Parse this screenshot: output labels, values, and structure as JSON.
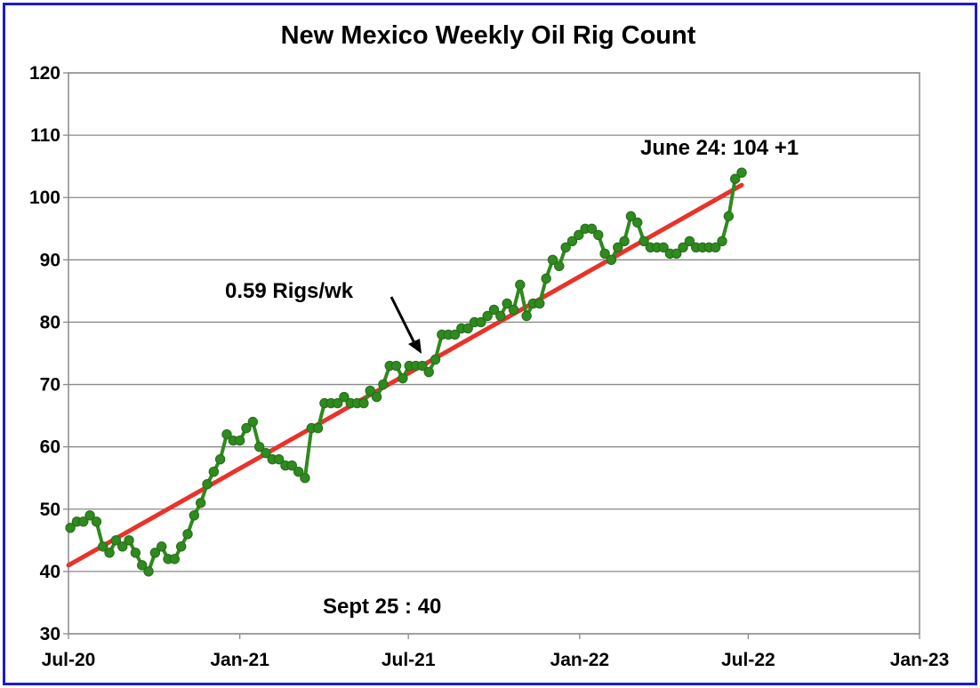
{
  "chart_data": {
    "type": "line",
    "title": "New Mexico Weekly Oil Rig Count",
    "xlabel": "",
    "ylabel": "",
    "ylim": [
      30,
      120
    ],
    "yticks": [
      30,
      40,
      50,
      60,
      70,
      80,
      90,
      100,
      110,
      120
    ],
    "xlim": [
      "2020-07-01",
      "2023-01-01"
    ],
    "xticks": [
      {
        "date": "2020-07-01",
        "label": "Jul-20"
      },
      {
        "date": "2021-01-01",
        "label": "Jan-21"
      },
      {
        "date": "2021-07-01",
        "label": "Jul-21"
      },
      {
        "date": "2022-01-01",
        "label": "Jan-22"
      },
      {
        "date": "2022-07-01",
        "label": "Jul-22"
      },
      {
        "date": "2023-01-01",
        "label": "Jan-23"
      }
    ],
    "grid": true,
    "series": [
      {
        "color": "#2f8a1f",
        "marker": "circle",
        "x": [
          "2020-07-03",
          "2020-07-10",
          "2020-07-17",
          "2020-07-24",
          "2020-07-31",
          "2020-08-07",
          "2020-08-14",
          "2020-08-21",
          "2020-08-28",
          "2020-09-04",
          "2020-09-11",
          "2020-09-18",
          "2020-09-25",
          "2020-10-02",
          "2020-10-09",
          "2020-10-16",
          "2020-10-23",
          "2020-10-30",
          "2020-11-06",
          "2020-11-13",
          "2020-11-20",
          "2020-11-27",
          "2020-12-04",
          "2020-12-11",
          "2020-12-18",
          "2020-12-25",
          "2021-01-01",
          "2021-01-08",
          "2021-01-15",
          "2021-01-22",
          "2021-01-29",
          "2021-02-05",
          "2021-02-12",
          "2021-02-19",
          "2021-02-26",
          "2021-03-05",
          "2021-03-12",
          "2021-03-19",
          "2021-03-26",
          "2021-04-02",
          "2021-04-09",
          "2021-04-16",
          "2021-04-23",
          "2021-04-30",
          "2021-05-07",
          "2021-05-14",
          "2021-05-21",
          "2021-05-28",
          "2021-06-04",
          "2021-06-11",
          "2021-06-18",
          "2021-06-25",
          "2021-07-02",
          "2021-07-09",
          "2021-07-16",
          "2021-07-23",
          "2021-07-30",
          "2021-08-06",
          "2021-08-13",
          "2021-08-20",
          "2021-08-27",
          "2021-09-03",
          "2021-09-10",
          "2021-09-17",
          "2021-09-24",
          "2021-10-01",
          "2021-10-08",
          "2021-10-15",
          "2021-10-22",
          "2021-10-29",
          "2021-11-05",
          "2021-11-12",
          "2021-11-19",
          "2021-11-26",
          "2021-12-03",
          "2021-12-10",
          "2021-12-17",
          "2021-12-24",
          "2021-12-31",
          "2022-01-07",
          "2022-01-14",
          "2022-01-21",
          "2022-01-28",
          "2022-02-04",
          "2022-02-11",
          "2022-02-18",
          "2022-02-25",
          "2022-03-04",
          "2022-03-11",
          "2022-03-18",
          "2022-03-25",
          "2022-04-01",
          "2022-04-08",
          "2022-04-15",
          "2022-04-22",
          "2022-04-29",
          "2022-05-06",
          "2022-05-13",
          "2022-05-20",
          "2022-05-27",
          "2022-06-03",
          "2022-06-10",
          "2022-06-17",
          "2022-06-24"
        ],
        "values": [
          47,
          48,
          48,
          49,
          48,
          44,
          43,
          45,
          44,
          45,
          43,
          41,
          40,
          43,
          44,
          42,
          42,
          44,
          46,
          49,
          51,
          54,
          56,
          58,
          62,
          61,
          61,
          63,
          64,
          60,
          59,
          58,
          58,
          57,
          57,
          56,
          55,
          63,
          63,
          67,
          67,
          67,
          68,
          67,
          67,
          67,
          69,
          68,
          70,
          73,
          73,
          71,
          73,
          73,
          73,
          72,
          74,
          78,
          78,
          78,
          79,
          79,
          80,
          80,
          81,
          82,
          81,
          83,
          82,
          86,
          81,
          83,
          83,
          87,
          90,
          89,
          92,
          93,
          94,
          95,
          95,
          94,
          91,
          90,
          92,
          93,
          97,
          96,
          93,
          92,
          92,
          92,
          91,
          91,
          92,
          93,
          92,
          92,
          92,
          92,
          93,
          97,
          103,
          104
        ]
      },
      {
        "color": "#e8332a",
        "marker": "none",
        "x": [
          "2020-07-01",
          "2022-06-24"
        ],
        "values": [
          41,
          102
        ]
      }
    ],
    "annotations": {
      "last_point": "June 24: 104 +1",
      "trend_rate": "0.59 Rigs/wk",
      "low_point": "Sept 25 : 40"
    }
  }
}
